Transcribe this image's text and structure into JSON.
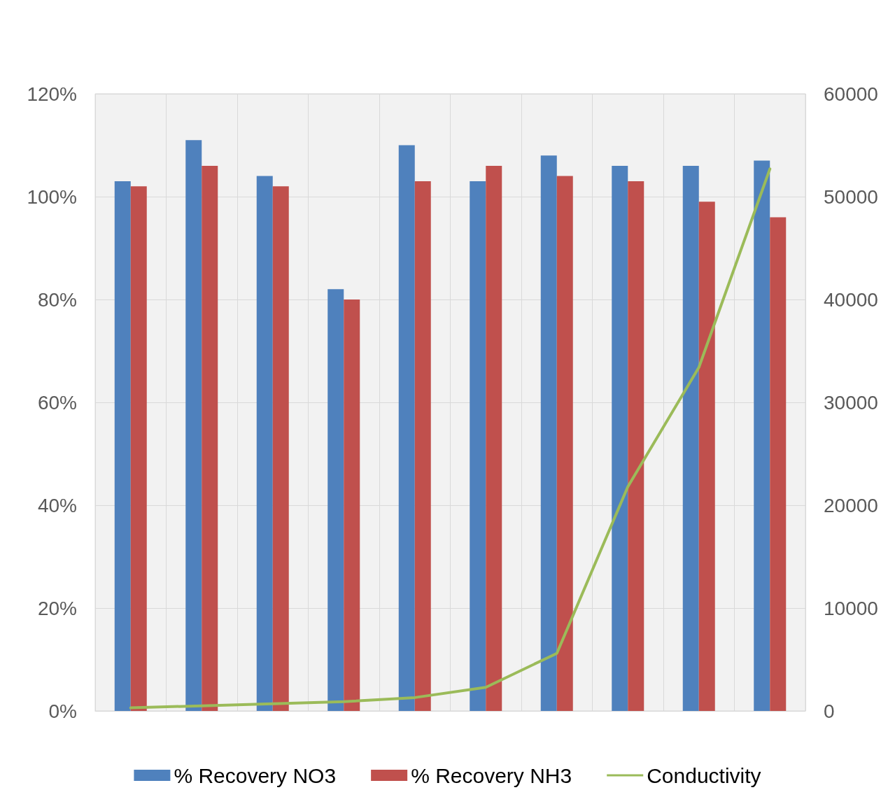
{
  "chart_data": {
    "type": "bar",
    "categories": [
      null,
      null,
      null,
      null,
      null,
      null,
      null,
      null,
      null,
      null
    ],
    "series": [
      {
        "name": "% Recovery NO3",
        "color": "#4f81bd",
        "values": [
          103,
          111,
          104,
          82,
          110,
          103,
          108,
          106,
          106,
          107
        ]
      },
      {
        "name": "% Recovery NH3",
        "color": "#c0504d",
        "values": [
          102,
          106,
          102,
          80,
          103,
          106,
          104,
          103,
          99,
          96
        ]
      },
      {
        "name": "Conductivity",
        "type": "line",
        "axis": "y2",
        "color": "#9bbb59",
        "values": [
          300,
          500,
          700,
          900,
          1300,
          2300,
          5600,
          21800,
          33400,
          52700
        ]
      }
    ],
    "ylim": [
      0,
      120
    ],
    "yticks": [
      {
        "value": 0,
        "label": "0%"
      },
      {
        "value": 20,
        "label": "20%"
      },
      {
        "value": 40,
        "label": "40%"
      },
      {
        "value": 60,
        "label": "60%"
      },
      {
        "value": 80,
        "label": "80%"
      },
      {
        "value": 100,
        "label": "100%"
      },
      {
        "value": 120,
        "label": "120%"
      }
    ],
    "y2lim": [
      0,
      60000
    ],
    "y2ticks": [
      0,
      10000,
      20000,
      30000,
      40000,
      50000,
      60000
    ],
    "grid": true,
    "legend": "bottom",
    "marker": "none",
    "line_style": "solid"
  }
}
